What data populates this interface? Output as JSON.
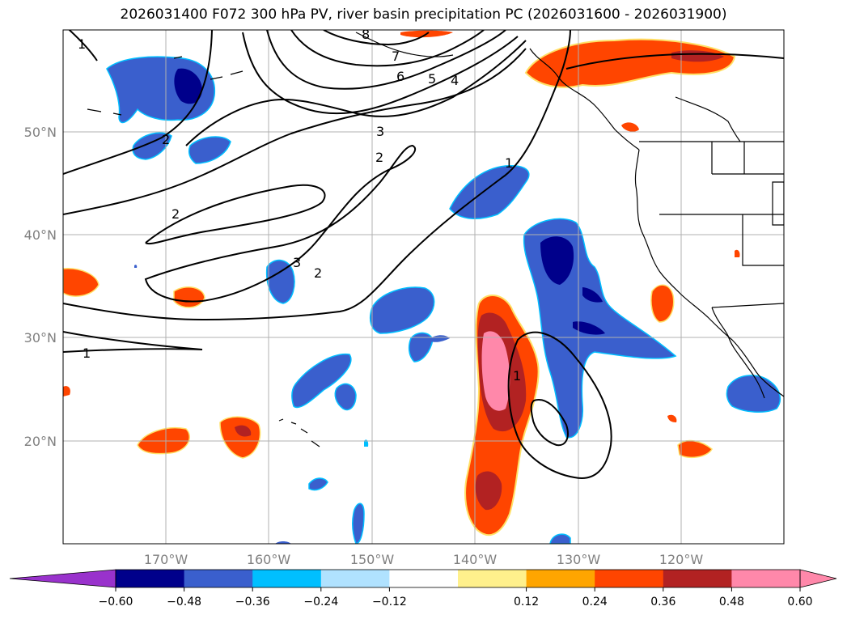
{
  "title": "2026031400 F072 300 hPa PV, river basin precipitation PC (2026031600 - 2026031900)",
  "map": {
    "lat_labels": [
      "50°N",
      "40°N",
      "30°N",
      "20°N"
    ],
    "lon_labels": [
      "170°W",
      "160°W",
      "150°W",
      "140°W",
      "130°W",
      "120°W"
    ],
    "contour_labels": [
      "1",
      "2",
      "3",
      "4",
      "5",
      "6",
      "7",
      "8"
    ]
  },
  "colorbar": {
    "ticks": [
      "−0.60",
      "−0.48",
      "−0.36",
      "−0.24",
      "−0.12",
      "0.12",
      "0.24",
      "0.36",
      "0.48",
      "0.60"
    ],
    "colors": [
      "#9932cc",
      "#00008b",
      "#3a5fcd",
      "#00bfff",
      "#b0e2ff",
      "#ffffff",
      "#fff08c",
      "#ffa500",
      "#ff4500",
      "#b22222",
      "#ff88aa",
      "#ff88aa"
    ]
  },
  "palette": {
    "neg_dark": "#00008b",
    "neg_mid": "#3a5fcd",
    "neg_light": "#00bfff",
    "pos_light": "#ffa500",
    "pos_mid": "#ff4500",
    "pos_dark": "#b22222",
    "pos_max": "#ff88aa",
    "pos_edge": "#ffe066"
  }
}
